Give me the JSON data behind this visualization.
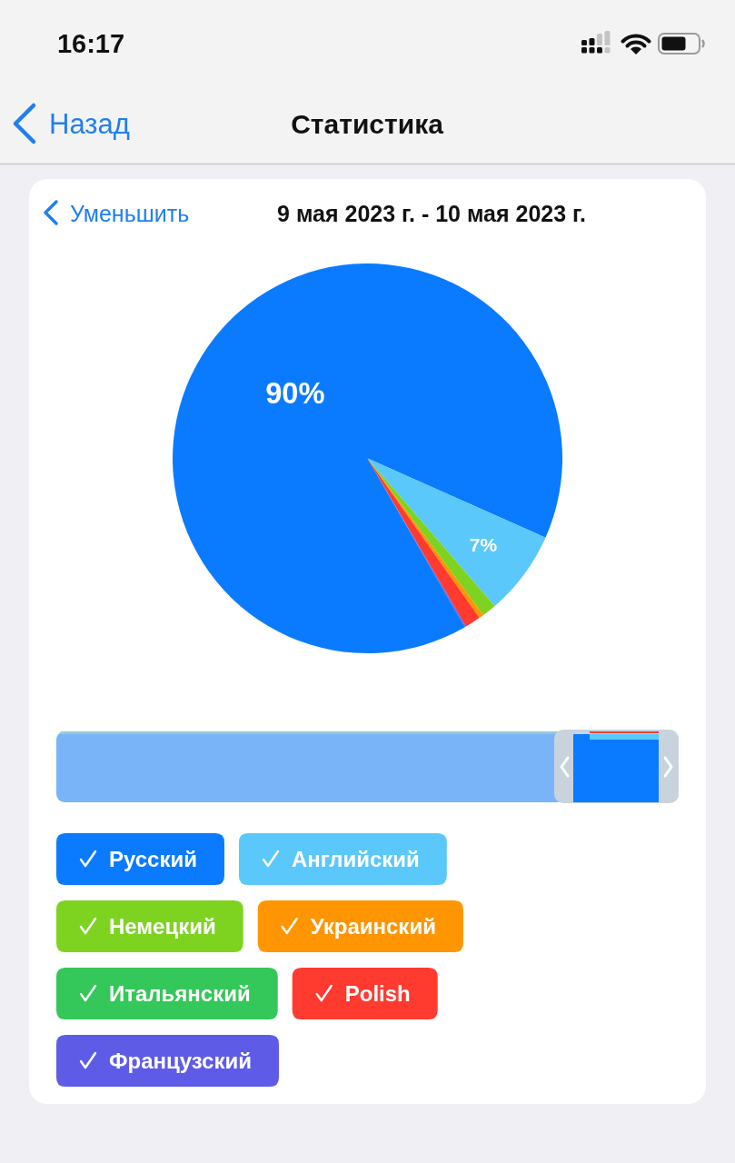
{
  "chart_data": {
    "type": "pie",
    "title": "Статистика",
    "subtitle": "9 мая 2023 г. - 10 мая 2023 г.",
    "annotations": [
      "16:17",
      "Назад",
      "Уменьшить"
    ],
    "categories": [
      "Русский",
      "Английский",
      "Немецкий",
      "Украинский",
      "Итальянский",
      "Polish",
      "Французский"
    ],
    "values": [
      90,
      7,
      1.2,
      0.4,
      0,
      1.3,
      0.1
    ],
    "colors": [
      "#0a7bff",
      "#5ac8fa",
      "#7ed321",
      "#ff9500",
      "#34c759",
      "#ff3b30",
      "#5e5ce6"
    ],
    "value_labels": [
      "90%",
      "7%",
      null,
      null,
      null,
      null,
      null
    ],
    "legend": "bottom"
  }
}
